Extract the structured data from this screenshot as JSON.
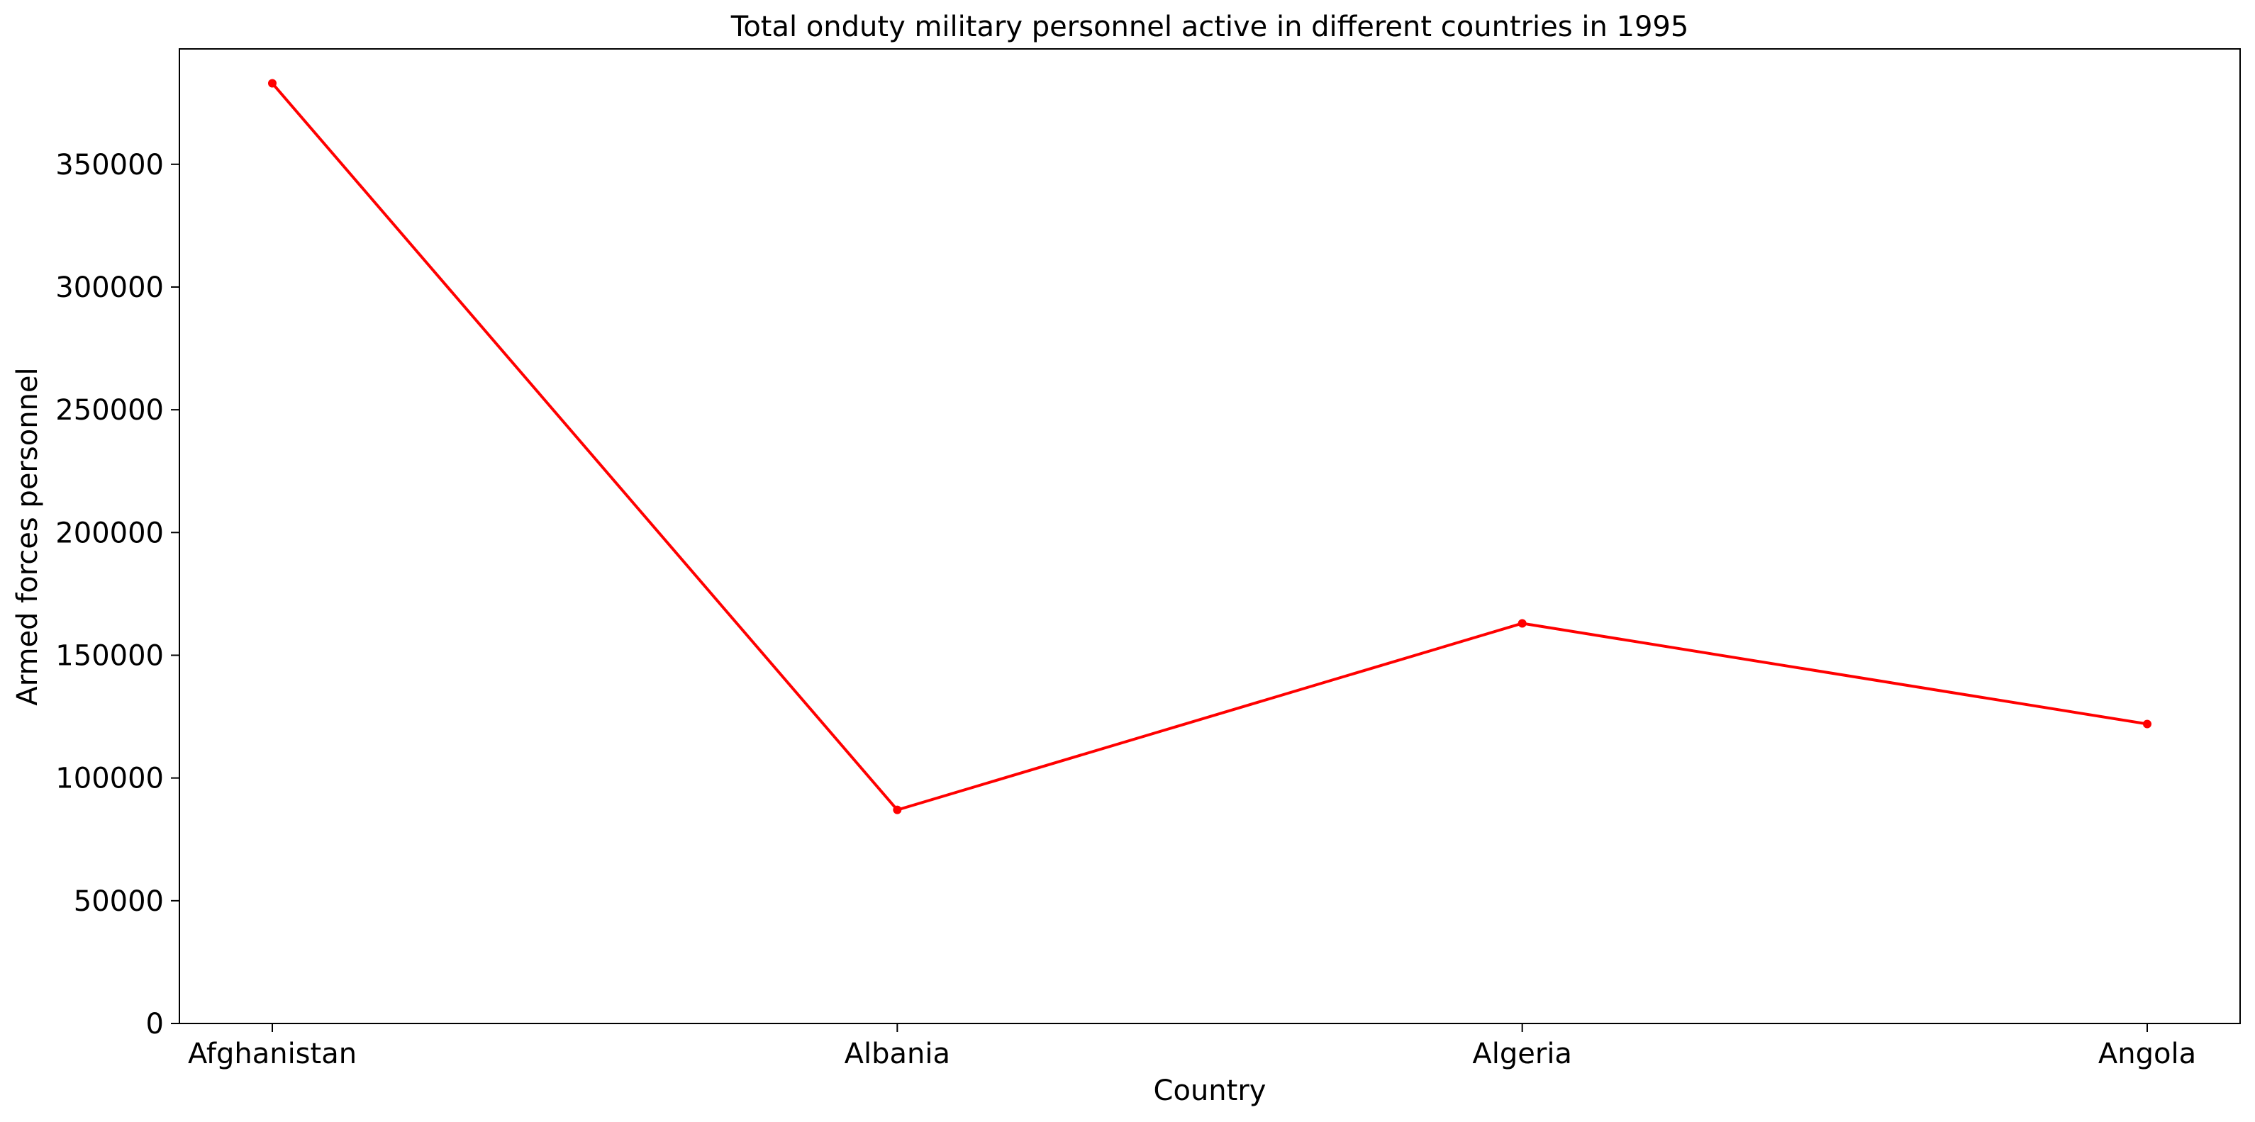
{
  "chart_data": {
    "type": "line",
    "title": "Total onduty military personnel active in different countries in 1995",
    "xlabel": "Country",
    "ylabel": "Armed forces personnel",
    "categories": [
      "Afghanistan",
      "Albania",
      "Algeria",
      "Angola"
    ],
    "series": [
      {
        "values": [
          383000,
          87000,
          163000,
          122000
        ],
        "color": "#ff0000",
        "marker": "circle"
      }
    ],
    "ylim": [
      0,
      397000
    ],
    "yticks": [
      0,
      50000,
      100000,
      150000,
      200000,
      250000,
      300000,
      350000
    ],
    "grid": false,
    "legend": "none"
  }
}
